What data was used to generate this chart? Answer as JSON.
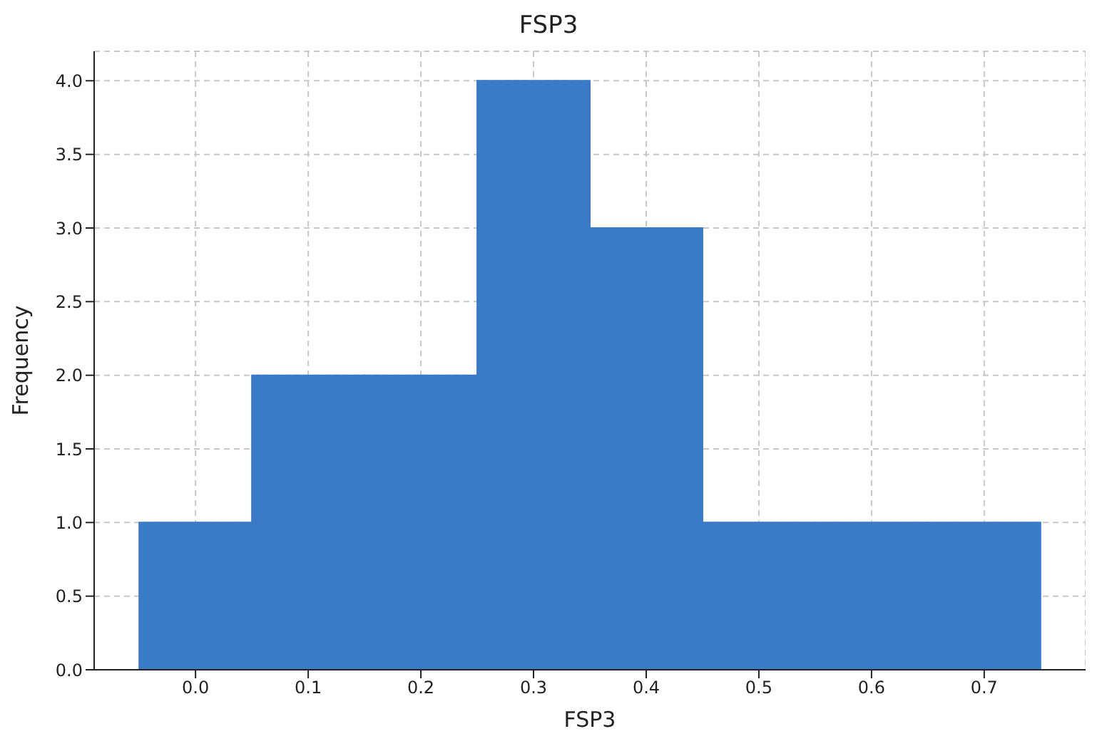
{
  "chart_data": {
    "type": "histogram",
    "title": "FSP3",
    "xlabel": "FSP3",
    "ylabel": "Frequency",
    "bins": [
      -0.05,
      0.05,
      0.15,
      0.25,
      0.35,
      0.45,
      0.55,
      0.65,
      0.75
    ],
    "values": [
      1,
      2,
      2,
      4,
      3,
      1,
      1,
      1
    ],
    "color": "#3a7bc8",
    "xlim": [
      -0.09,
      0.79
    ],
    "xticks": [
      {
        "value": 0,
        "label": "0.0"
      },
      {
        "value": 0.1,
        "label": "0.1"
      },
      {
        "value": 0.2,
        "label": "0.2"
      },
      {
        "value": 0.3,
        "label": "0.3"
      },
      {
        "value": 0.4,
        "label": "0.4"
      },
      {
        "value": 0.5,
        "label": "0.5"
      },
      {
        "value": 0.6,
        "label": "0.6"
      },
      {
        "value": 0.7,
        "label": "0.7"
      }
    ],
    "ylim": [
      0,
      4.2
    ],
    "yticks": [
      {
        "value": 0,
        "label": "0.0"
      },
      {
        "value": 0.5,
        "label": "0.5"
      },
      {
        "value": 1,
        "label": "1.0"
      },
      {
        "value": 1.5,
        "label": "1.5"
      },
      {
        "value": 2,
        "label": "2.0"
      },
      {
        "value": 2.5,
        "label": "2.5"
      },
      {
        "value": 3,
        "label": "3.0"
      },
      {
        "value": 3.5,
        "label": "3.5"
      },
      {
        "value": 4,
        "label": "4.0"
      }
    ],
    "grid": true
  }
}
